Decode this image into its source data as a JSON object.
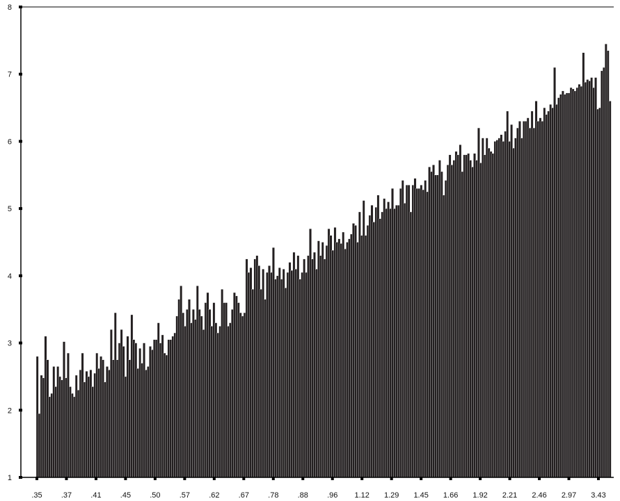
{
  "colors": {
    "bar_fill": "#231f20",
    "bar_stroke": "#ffffff",
    "axis": "#000000",
    "background": "#ffffff"
  },
  "chart_data": {
    "type": "bar",
    "title": "",
    "xlabel": "",
    "ylabel": "",
    "ylim": [
      1,
      8
    ],
    "y_ticks": [
      "1",
      "2",
      "3",
      "4",
      "5",
      "6",
      "7",
      "8"
    ],
    "x_tick_labels": [
      ".35",
      ".37",
      ".41",
      ".45",
      ".50",
      ".57",
      ".62",
      ".67",
      ".78",
      ".88",
      ".96",
      "1.12",
      "1.29",
      "1.45",
      "1.66",
      "1.92",
      "2.21",
      "2.46",
      "2.97",
      "3.43"
    ],
    "grid": false,
    "legend": "none",
    "values": [
      2.8,
      1.95,
      2.52,
      2.48,
      3.1,
      2.75,
      2.2,
      2.25,
      2.65,
      2.35,
      2.65,
      2.5,
      2.45,
      3.02,
      2.48,
      2.85,
      2.35,
      2.25,
      2.2,
      2.52,
      2.3,
      2.6,
      2.85,
      2.42,
      2.58,
      2.5,
      2.6,
      2.35,
      2.55,
      2.85,
      2.62,
      2.8,
      2.75,
      2.42,
      2.65,
      2.6,
      3.2,
      2.75,
      3.45,
      2.75,
      3.0,
      3.2,
      2.95,
      2.5,
      3.1,
      2.75,
      3.42,
      3.05,
      3.0,
      2.62,
      2.92,
      2.7,
      3.0,
      2.6,
      2.65,
      2.95,
      2.9,
      3.05,
      3.05,
      3.3,
      3.0,
      3.12,
      2.85,
      2.82,
      3.05,
      3.05,
      3.1,
      3.15,
      3.4,
      3.65,
      3.85,
      3.45,
      3.25,
      3.5,
      3.65,
      3.3,
      3.5,
      3.35,
      3.85,
      3.5,
      3.4,
      3.2,
      3.6,
      3.75,
      3.5,
      3.25,
      3.6,
      3.3,
      3.15,
      3.25,
      3.8,
      3.6,
      3.6,
      3.25,
      3.3,
      3.5,
      3.75,
      3.7,
      3.6,
      3.45,
      3.4,
      3.45,
      4.25,
      4.05,
      4.12,
      3.8,
      4.25,
      4.3,
      4.15,
      3.8,
      4.1,
      3.65,
      4.05,
      4.15,
      4.05,
      4.42,
      3.95,
      4.0,
      4.12,
      3.95,
      4.1,
      3.82,
      4.05,
      4.2,
      4.08,
      4.35,
      4.1,
      4.3,
      3.95,
      4.05,
      4.25,
      4.05,
      4.3,
      4.7,
      4.25,
      4.35,
      4.1,
      4.52,
      4.3,
      4.5,
      4.25,
      4.45,
      4.7,
      4.6,
      4.38,
      4.72,
      4.5,
      4.55,
      4.48,
      4.65,
      4.4,
      4.5,
      4.55,
      4.62,
      4.78,
      4.75,
      4.5,
      4.95,
      4.6,
      5.12,
      4.6,
      4.75,
      4.9,
      5.05,
      4.8,
      5.02,
      5.2,
      4.85,
      4.95,
      5.15,
      5.0,
      5.1,
      5.0,
      5.3,
      5.0,
      5.05,
      5.05,
      5.3,
      5.42,
      5.08,
      5.35,
      5.35,
      4.95,
      5.35,
      5.45,
      5.3,
      5.3,
      5.35,
      5.28,
      5.42,
      5.25,
      5.62,
      5.55,
      5.65,
      5.5,
      5.5,
      5.72,
      5.55,
      5.2,
      5.42,
      5.65,
      5.8,
      5.65,
      5.72,
      5.85,
      5.8,
      5.95,
      5.55,
      5.8,
      5.8,
      5.82,
      5.72,
      5.62,
      5.82,
      5.72,
      6.2,
      5.68,
      6.05,
      5.8,
      6.05,
      5.9,
      5.85,
      5.82,
      6.0,
      6.02,
      6.05,
      6.1,
      6.0,
      6.15,
      6.45,
      6.0,
      6.25,
      5.9,
      6.05,
      6.2,
      6.3,
      6.05,
      6.3,
      6.3,
      6.35,
      6.2,
      6.45,
      6.2,
      6.6,
      6.3,
      6.35,
      6.3,
      6.5,
      6.4,
      6.45,
      6.55,
      6.5,
      7.1,
      6.55,
      6.65,
      6.7,
      6.75,
      6.7,
      6.72,
      6.72,
      6.8,
      6.78,
      6.75,
      6.8,
      6.85,
      6.82,
      7.32,
      6.88,
      6.92,
      6.9,
      6.95,
      6.8,
      6.95,
      6.48,
      6.5,
      7.05,
      7.1,
      7.45,
      7.35,
      6.6
    ]
  }
}
